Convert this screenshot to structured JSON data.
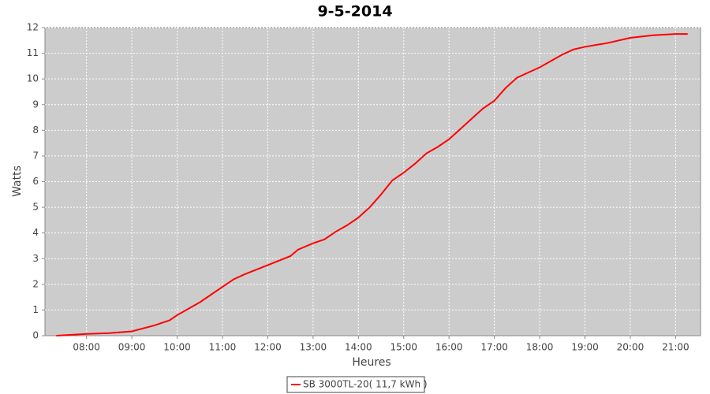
{
  "chart_data": {
    "type": "line",
    "title": "9-5-2014",
    "x_label": "Heures",
    "y_label": "Watts",
    "x": [
      "07:20",
      "08:00",
      "08:30",
      "09:00",
      "09:30",
      "09:50",
      "10:00",
      "10:30",
      "10:40",
      "11:00",
      "11:15",
      "11:30",
      "12:00",
      "12:30",
      "12:40",
      "13:00",
      "13:15",
      "13:30",
      "13:45",
      "14:00",
      "14:15",
      "14:30",
      "14:45",
      "15:00",
      "15:15",
      "15:30",
      "15:45",
      "16:00",
      "16:15",
      "16:30",
      "16:45",
      "17:00",
      "17:15",
      "17:30",
      "17:45",
      "18:00",
      "18:15",
      "18:30",
      "18:45",
      "19:00",
      "19:30",
      "20:00",
      "20:30",
      "21:00",
      "21:16"
    ],
    "series": [
      {
        "name": "SB 3000TL-20( 11,7 kWh )",
        "color": "#ff0000",
        "values": [
          0,
          0.07,
          0.1,
          0.17,
          0.4,
          0.6,
          0.8,
          1.3,
          1.5,
          1.9,
          2.2,
          2.4,
          2.75,
          3.1,
          3.35,
          3.6,
          3.75,
          4.05,
          4.3,
          4.6,
          5.0,
          5.5,
          6.05,
          6.35,
          6.7,
          7.1,
          7.35,
          7.65,
          8.05,
          8.45,
          8.85,
          9.15,
          9.65,
          10.05,
          10.25,
          10.45,
          10.7,
          10.95,
          11.15,
          11.25,
          11.4,
          11.6,
          11.7,
          11.75,
          11.75
        ]
      }
    ],
    "xlim": [
      "07:05",
      "21:33"
    ],
    "xticks": [
      "08:00",
      "09:00",
      "10:00",
      "11:00",
      "12:00",
      "13:00",
      "14:00",
      "15:00",
      "16:00",
      "17:00",
      "18:00",
      "19:00",
      "20:00",
      "21:00"
    ],
    "ylim": [
      0,
      12
    ],
    "yticks": [
      0,
      1,
      2,
      3,
      4,
      5,
      6,
      7,
      8,
      9,
      10,
      11,
      12
    ],
    "grid": true,
    "legend": "bottom"
  }
}
